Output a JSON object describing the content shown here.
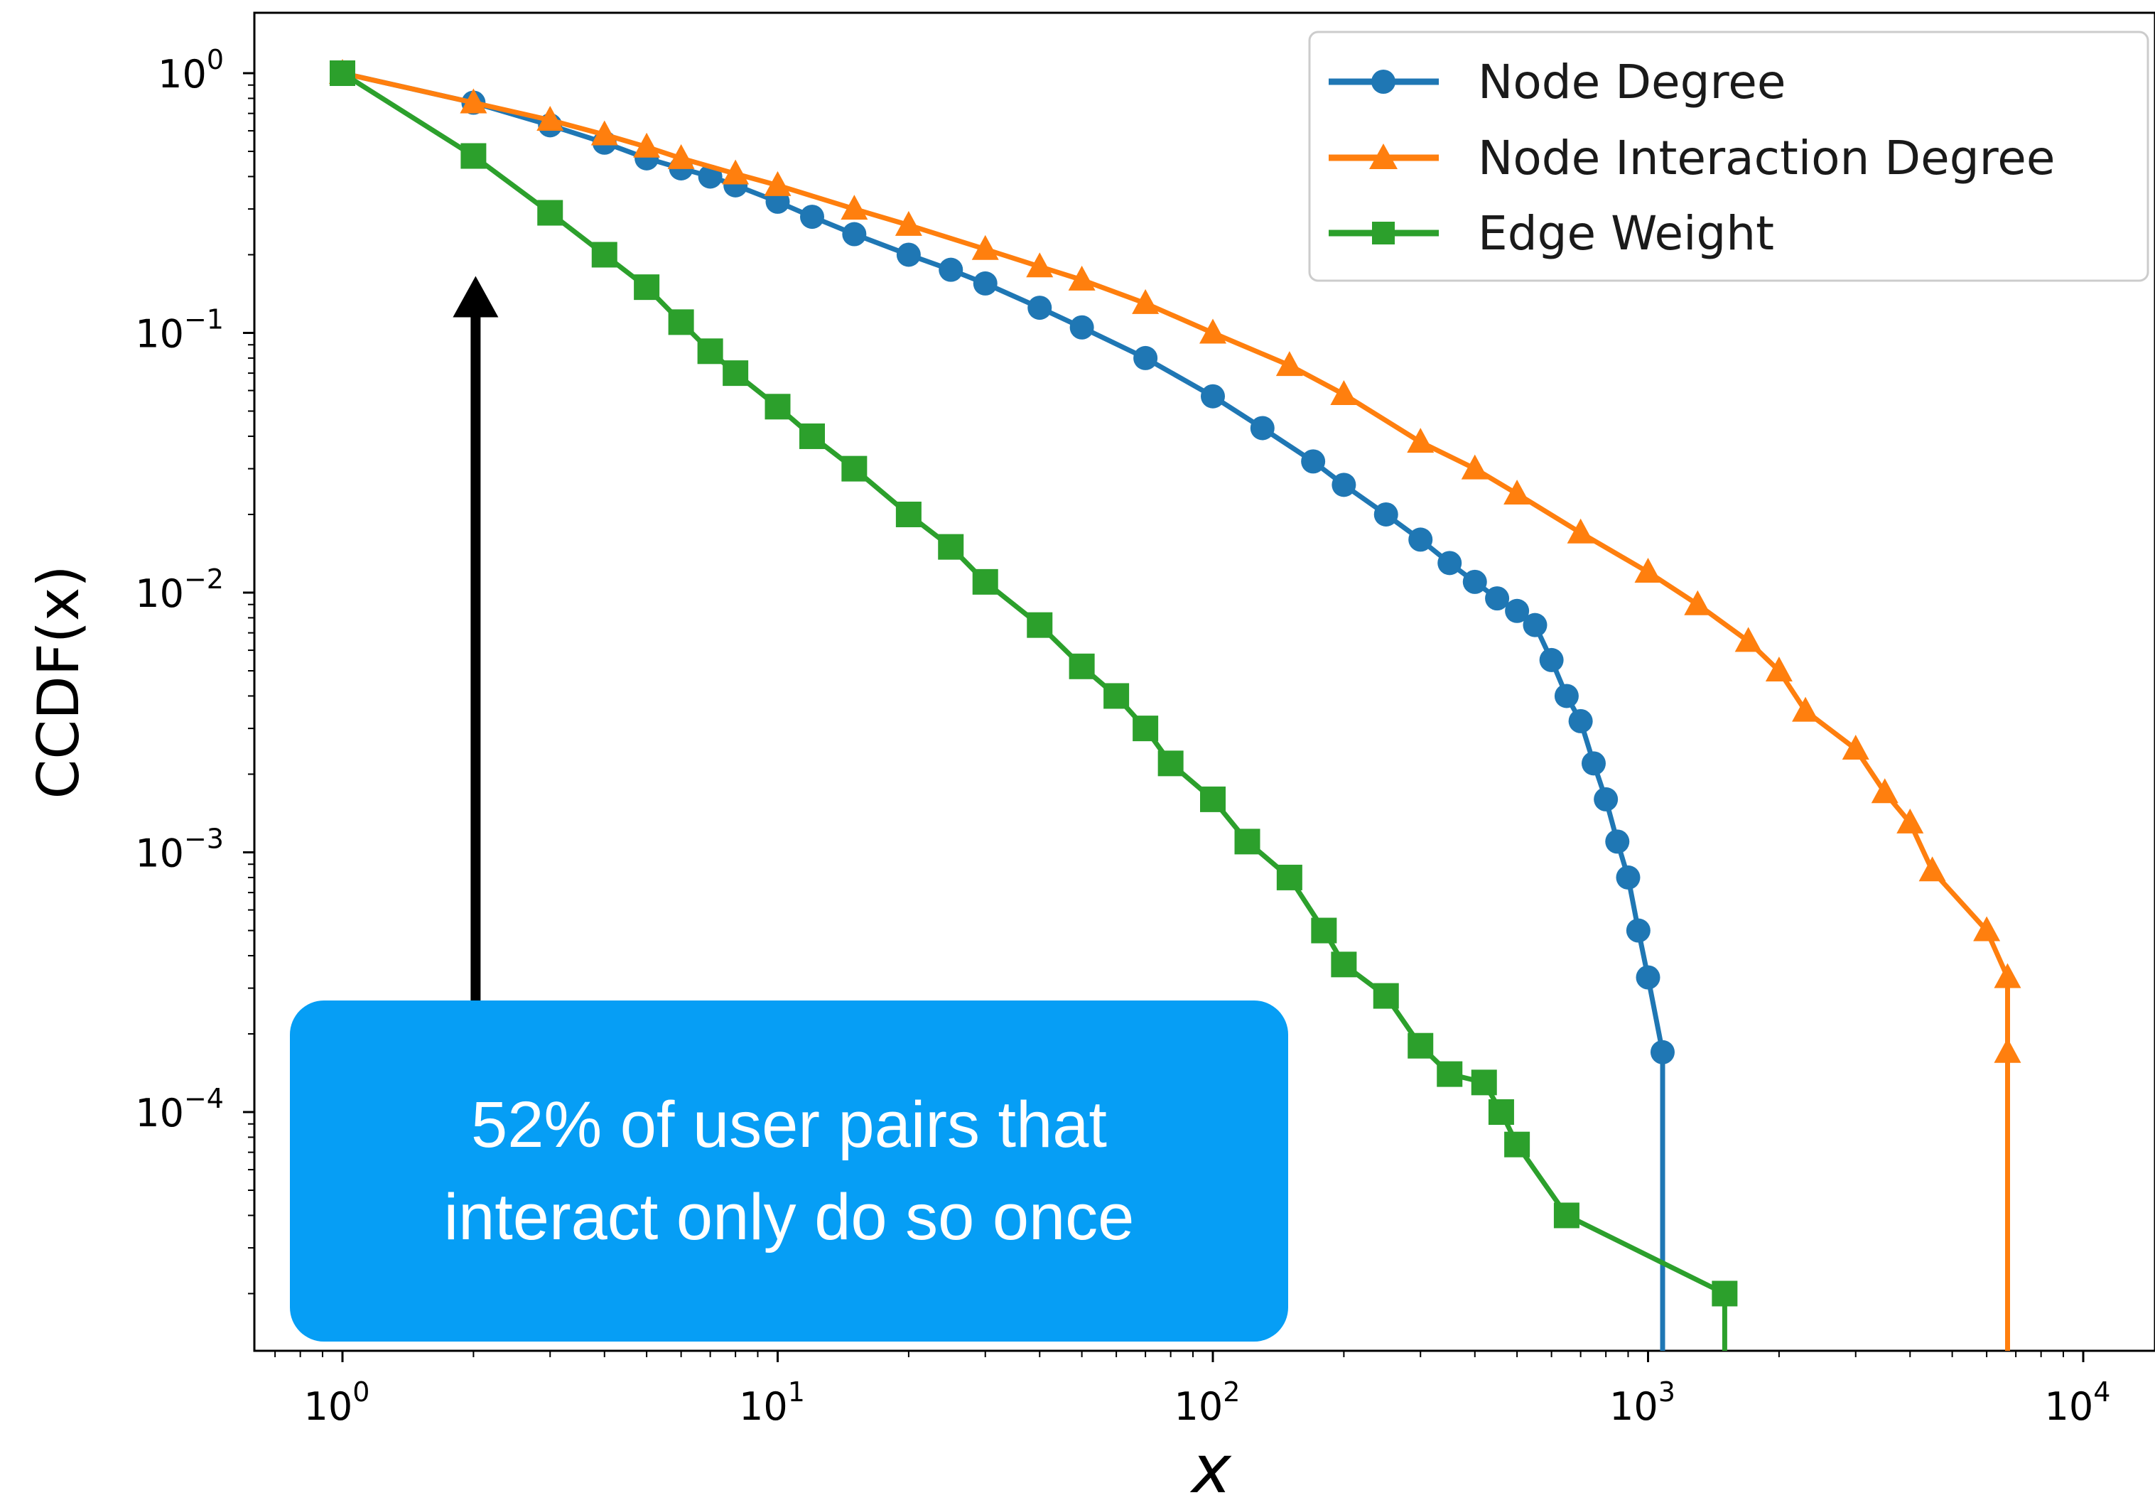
{
  "chart_data": {
    "type": "line",
    "title": "",
    "xlabel": "x",
    "ylabel": "CCDF(x)",
    "xscale": "log",
    "yscale": "log",
    "xlim": [
      0.65,
      15000
    ],
    "ylim": [
      1.2e-05,
      3
    ],
    "x_ticks": [
      {
        "base": "10",
        "exp": "0",
        "value": 1
      },
      {
        "base": "10",
        "exp": "1",
        "value": 10
      },
      {
        "base": "10",
        "exp": "2",
        "value": 100
      },
      {
        "base": "10",
        "exp": "3",
        "value": 1000
      },
      {
        "base": "10",
        "exp": "4",
        "value": 10000
      }
    ],
    "y_ticks": [
      {
        "base": "10",
        "exp": "0",
        "value": 1
      },
      {
        "base": "10",
        "exp": "−1",
        "value": 0.1
      },
      {
        "base": "10",
        "exp": "−2",
        "value": 0.01
      },
      {
        "base": "10",
        "exp": "−3",
        "value": 0.001
      },
      {
        "base": "10",
        "exp": "−4",
        "value": 0.0001
      }
    ],
    "grid": false,
    "legend_position": "top-right",
    "series": [
      {
        "name": "Node Degree",
        "color": "#1f77b4",
        "marker": "circle",
        "points": [
          [
            1,
            1
          ],
          [
            2,
            0.77
          ],
          [
            3,
            0.63
          ],
          [
            4,
            0.54
          ],
          [
            5,
            0.47
          ],
          [
            6,
            0.43
          ],
          [
            7,
            0.4
          ],
          [
            8,
            0.37
          ],
          [
            10,
            0.32
          ],
          [
            12,
            0.28
          ],
          [
            15,
            0.24
          ],
          [
            20,
            0.2
          ],
          [
            25,
            0.175
          ],
          [
            30,
            0.155
          ],
          [
            40,
            0.125
          ],
          [
            50,
            0.105
          ],
          [
            70,
            0.08
          ],
          [
            100,
            0.057
          ],
          [
            130,
            0.043
          ],
          [
            170,
            0.032
          ],
          [
            200,
            0.026
          ],
          [
            250,
            0.02
          ],
          [
            300,
            0.016
          ],
          [
            350,
            0.013
          ],
          [
            400,
            0.011
          ],
          [
            450,
            0.0095
          ],
          [
            500,
            0.0085
          ],
          [
            550,
            0.0075
          ],
          [
            600,
            0.0055
          ],
          [
            650,
            0.004
          ],
          [
            700,
            0.0032
          ],
          [
            750,
            0.0022
          ],
          [
            800,
            0.0016
          ],
          [
            850,
            0.0011
          ],
          [
            900,
            0.0008
          ],
          [
            950,
            0.0005
          ],
          [
            1000,
            0.00033
          ],
          [
            1080,
            0.00017
          ]
        ],
        "drop_to_axis_at_x": 1080
      },
      {
        "name": "Node Interaction Degree",
        "color": "#ff7f0e",
        "marker": "triangle",
        "points": [
          [
            1,
            1
          ],
          [
            2,
            0.77
          ],
          [
            3,
            0.66
          ],
          [
            4,
            0.58
          ],
          [
            5,
            0.52
          ],
          [
            6,
            0.47
          ],
          [
            8,
            0.41
          ],
          [
            10,
            0.37
          ],
          [
            15,
            0.3
          ],
          [
            20,
            0.26
          ],
          [
            30,
            0.21
          ],
          [
            40,
            0.18
          ],
          [
            50,
            0.16
          ],
          [
            70,
            0.13
          ],
          [
            100,
            0.1
          ],
          [
            150,
            0.075
          ],
          [
            200,
            0.058
          ],
          [
            300,
            0.038
          ],
          [
            400,
            0.03
          ],
          [
            500,
            0.024
          ],
          [
            700,
            0.017
          ],
          [
            1000,
            0.012
          ],
          [
            1300,
            0.009
          ],
          [
            1700,
            0.0065
          ],
          [
            2000,
            0.005
          ],
          [
            2300,
            0.0035
          ],
          [
            3000,
            0.0025
          ],
          [
            3500,
            0.0017
          ],
          [
            4000,
            0.0013
          ],
          [
            4500,
            0.00085
          ],
          [
            6000,
            0.0005
          ],
          [
            6700,
            0.00033
          ],
          [
            6700,
            0.00017
          ]
        ],
        "drop_to_axis_at_x": 6700
      },
      {
        "name": "Edge Weight",
        "color": "#2ca02c",
        "marker": "square",
        "points": [
          [
            1,
            1
          ],
          [
            2,
            0.48
          ],
          [
            3,
            0.29
          ],
          [
            4,
            0.2
          ],
          [
            5,
            0.15
          ],
          [
            6,
            0.11
          ],
          [
            7,
            0.085
          ],
          [
            8,
            0.07
          ],
          [
            10,
            0.052
          ],
          [
            12,
            0.04
          ],
          [
            15,
            0.03
          ],
          [
            20,
            0.02
          ],
          [
            25,
            0.015
          ],
          [
            30,
            0.011
          ],
          [
            40,
            0.0075
          ],
          [
            50,
            0.0052
          ],
          [
            60,
            0.004
          ],
          [
            70,
            0.003
          ],
          [
            80,
            0.0022
          ],
          [
            100,
            0.0016
          ],
          [
            120,
            0.0011
          ],
          [
            150,
            0.0008
          ],
          [
            180,
            0.0005
          ],
          [
            200,
            0.00037
          ],
          [
            250,
            0.00028
          ],
          [
            300,
            0.00018
          ],
          [
            350,
            0.00014
          ],
          [
            420,
            0.00013
          ],
          [
            460,
            0.0001
          ],
          [
            500,
            7.5e-05
          ],
          [
            650,
            4e-05
          ],
          [
            1500,
            2e-05
          ]
        ],
        "drop_to_axis_at_x": 1500
      }
    ],
    "annotations": [
      {
        "text": "52% of user pairs that\ninteract only do so once",
        "arrow_x": 2,
        "arrow_tip_y": 0.4
      }
    ]
  }
}
